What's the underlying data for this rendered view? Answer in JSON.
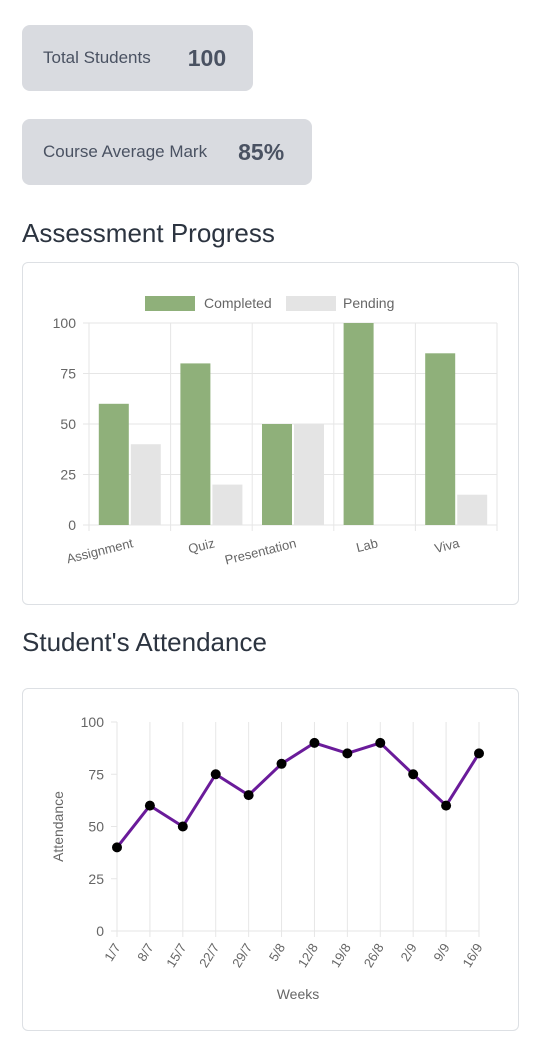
{
  "stats": {
    "total_students_label": "Total Students",
    "total_students_value": "100",
    "course_average_label": "Course Average Mark",
    "course_average_value": "85%"
  },
  "sections": {
    "assessment_title": "Assessment Progress",
    "attendance_title": "Student's Attendance"
  },
  "chart_data": [
    {
      "type": "bar",
      "categories": [
        "Assignment",
        "Quiz",
        "Presentation",
        "Lab",
        "Viva"
      ],
      "series": [
        {
          "name": "Completed",
          "values": [
            60,
            80,
            50,
            100,
            85
          ],
          "color": "#8fb07a"
        },
        {
          "name": "Pending",
          "values": [
            40,
            20,
            50,
            0,
            15
          ],
          "color": "#e4e4e4"
        }
      ],
      "ylim": [
        0,
        100
      ],
      "yticks": [
        "0",
        "25",
        "50",
        "75",
        "100"
      ],
      "grid": true,
      "legend": "top"
    },
    {
      "type": "line",
      "x": [
        "1/7",
        "8/7",
        "15/7",
        "22/7",
        "29/7",
        "5/8",
        "12/8",
        "19/8",
        "26/8",
        "2/9",
        "9/9",
        "16/9"
      ],
      "values": [
        40,
        60,
        50,
        75,
        65,
        80,
        90,
        85,
        90,
        75,
        60,
        85
      ],
      "line_color": "#6a1b9a",
      "point_color": "#000000",
      "xlabel": "Weeks",
      "ylabel": "Attendance",
      "ylim": [
        0,
        100
      ],
      "yticks": [
        "0",
        "25",
        "50",
        "75",
        "100"
      ],
      "grid": true
    }
  ]
}
